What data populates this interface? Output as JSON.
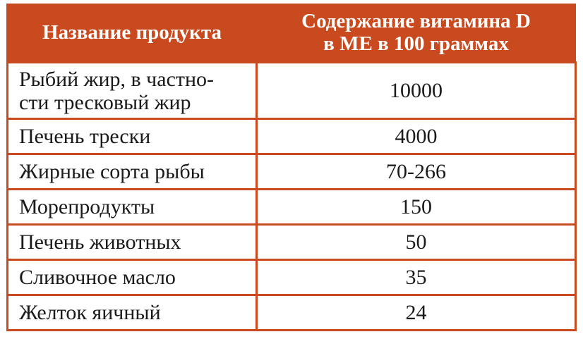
{
  "table": {
    "headers": [
      "Название продукта",
      "Содержание витамина D\nв МЕ в 100 граммах"
    ],
    "header_col2_line1": "Содержание витамина D",
    "header_col2_line2": "в МЕ в 100 граммах",
    "rows": [
      {
        "name_line1": "Рыбий жир, в частно-",
        "name_line2": "сти тресковый жир",
        "value": "10000"
      },
      {
        "name": "Печень трески",
        "value": "4000"
      },
      {
        "name": "Жирные сорта рыбы",
        "value": "70-266"
      },
      {
        "name": "Морепродукты",
        "value": "150"
      },
      {
        "name": "Печень животных",
        "value": "50"
      },
      {
        "name": "Сливочное масло",
        "value": "35"
      },
      {
        "name": "Желток яичный",
        "value": "24"
      }
    ]
  },
  "colors": {
    "accent": "#c94a1e",
    "header_text": "#ffffff",
    "body_text": "#1a1a1a",
    "background": "#ffffff"
  }
}
